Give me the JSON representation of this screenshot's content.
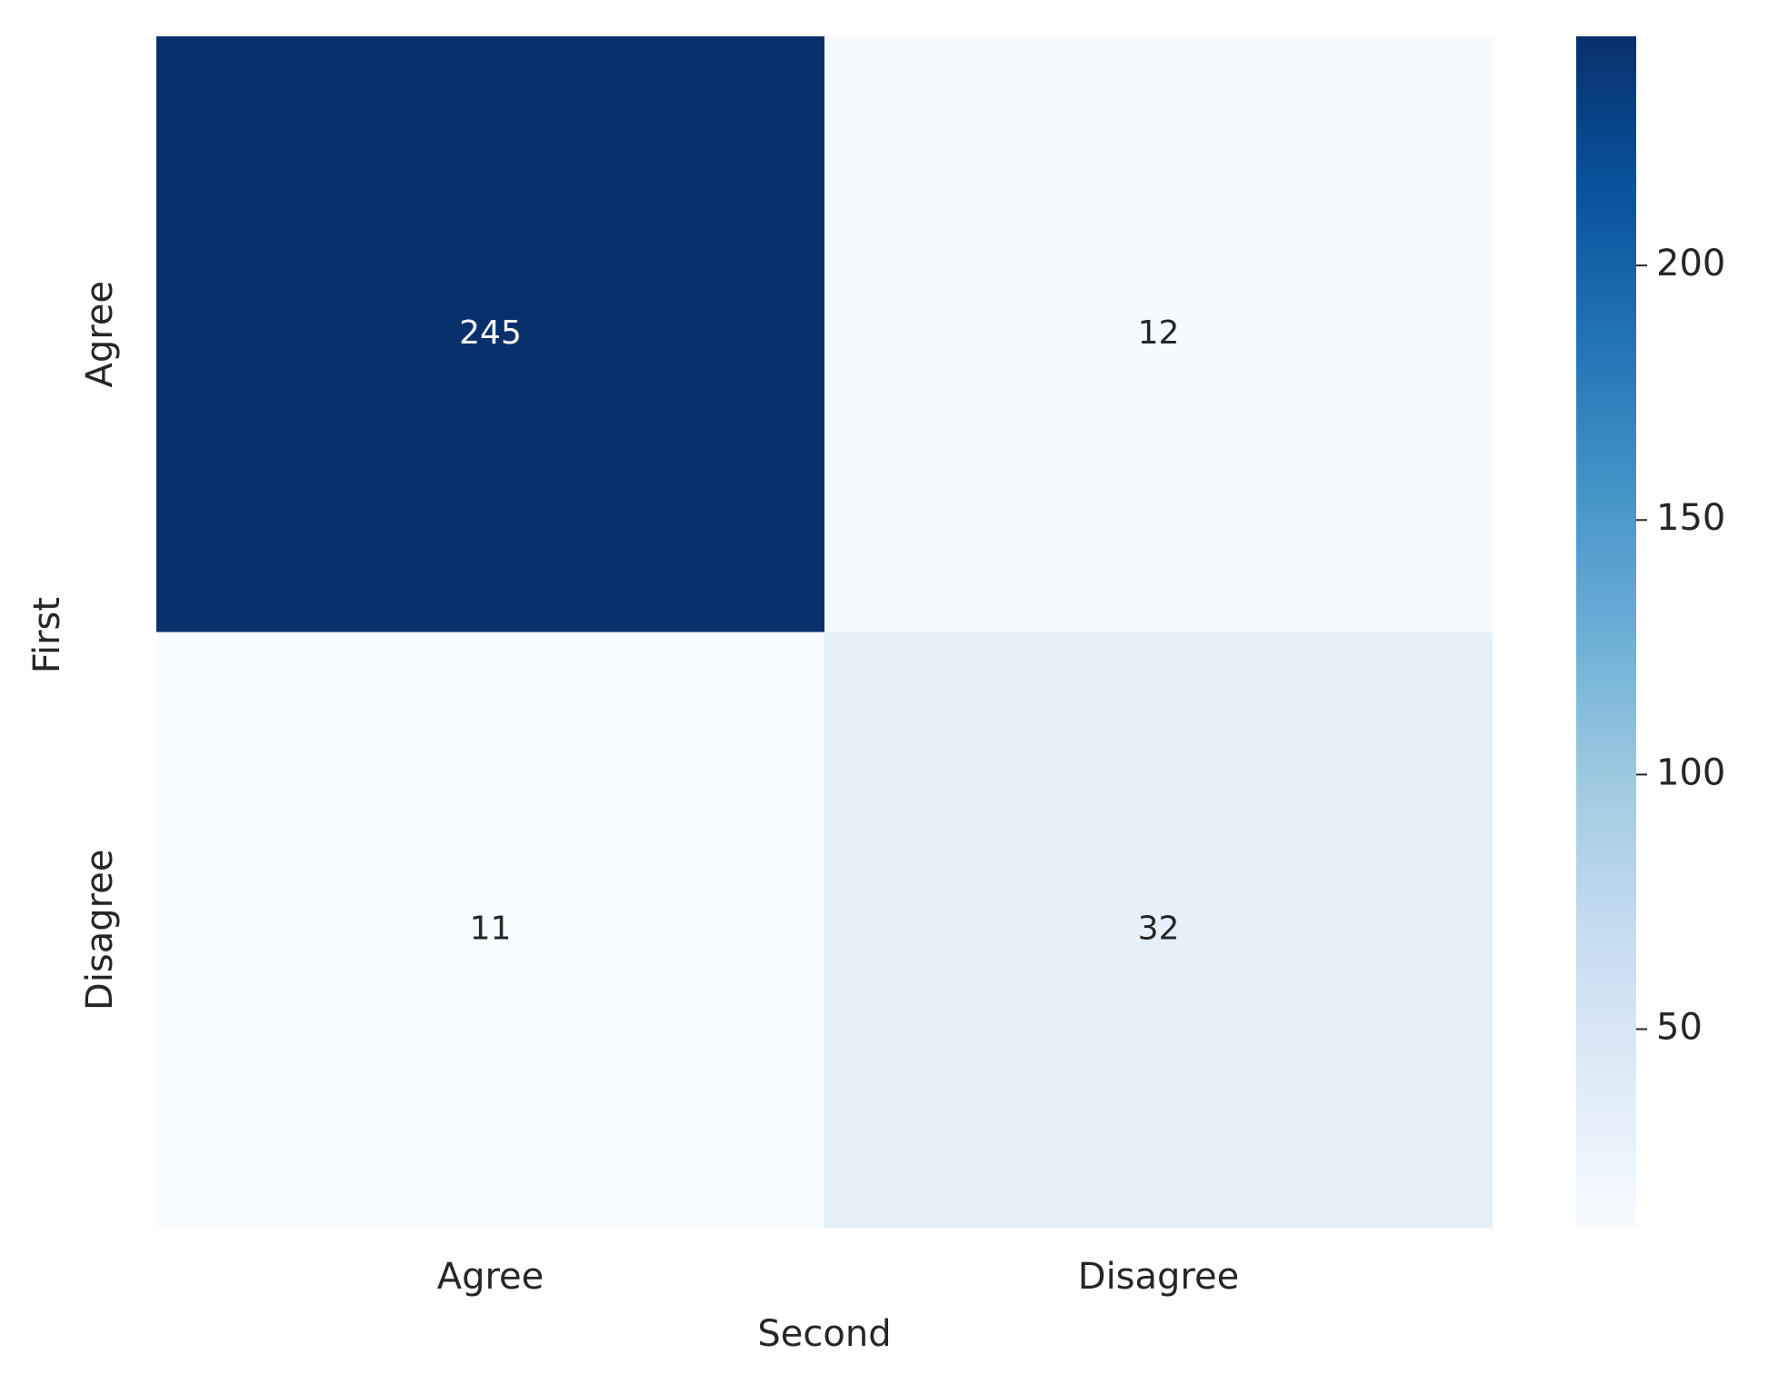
{
  "chart_data": {
    "type": "heatmap",
    "x_label": "Second",
    "y_label": "First",
    "x_categories": [
      "Agree",
      "Disagree"
    ],
    "y_categories": [
      "Agree",
      "Disagree"
    ],
    "values": [
      [
        245,
        12
      ],
      [
        11,
        32
      ]
    ],
    "colorscale": [
      "#f7fbff",
      "#deebf7",
      "#c6dbef",
      "#9ecae1",
      "#6baed6",
      "#4292c6",
      "#2171b5",
      "#08519c",
      "#08306b"
    ],
    "clim": [
      11,
      245
    ],
    "cticks": [
      50,
      100,
      150,
      200
    ]
  }
}
